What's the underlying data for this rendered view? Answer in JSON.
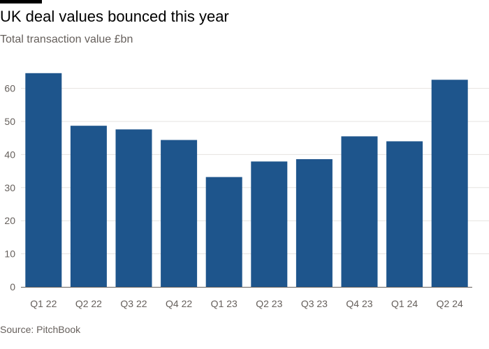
{
  "header": {
    "title": "UK deal values bounced this year",
    "subtitle": "Total transaction value £bn"
  },
  "footer": {
    "source": "Source: PitchBook"
  },
  "colors": {
    "bar": "#1e558c",
    "grid": "#e6e3e0",
    "axis": "#66605c",
    "text": "#66605c"
  },
  "chart_data": {
    "type": "bar",
    "categories": [
      "Q1 22",
      "Q2 22",
      "Q3 22",
      "Q4 22",
      "Q1 23",
      "Q2 23",
      "Q3 23",
      "Q4 23",
      "Q1 24",
      "Q2 24"
    ],
    "series": [
      {
        "values": [
          64.6,
          48.7,
          47.6,
          44.4,
          33.2,
          37.9,
          38.6,
          45.5,
          44.0,
          62.6
        ]
      }
    ],
    "title": "UK deal values bounced this year",
    "subtitle": "Total transaction value £bn",
    "ylim": [
      0,
      67
    ],
    "yticks": [
      0,
      10,
      20,
      30,
      40,
      50,
      60
    ],
    "grid": true,
    "legend": "none"
  }
}
